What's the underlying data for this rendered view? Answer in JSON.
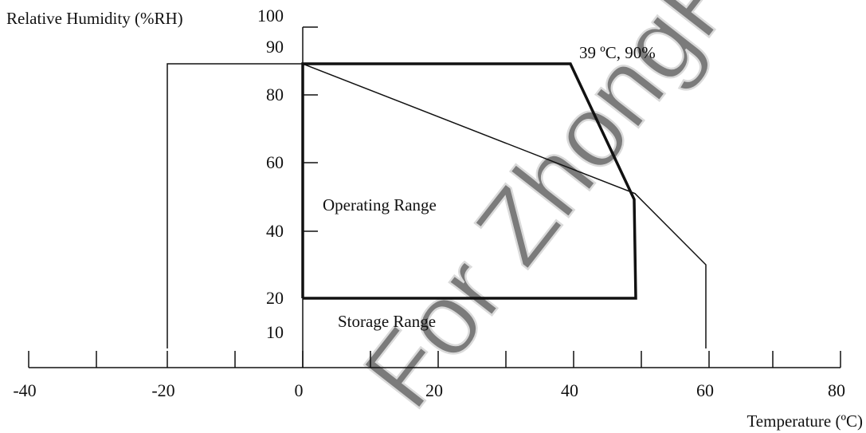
{
  "chart_data": {
    "type": "line",
    "ylabel": "Relative Humidity (%RH)",
    "xlabel": "Temperature (ºC)",
    "x_ticks": [
      -40,
      -20,
      0,
      20,
      40,
      60,
      80
    ],
    "x_minor_ticks": [
      -30,
      -10,
      10,
      30,
      50,
      70
    ],
    "y_ticks": [
      10,
      20,
      40,
      60,
      80,
      90,
      100
    ],
    "series": [
      {
        "name": "Operating Range",
        "points": [
          [
            0,
            20
          ],
          [
            0,
            90
          ],
          [
            39,
            90
          ],
          [
            49,
            51
          ],
          [
            49.5,
            20
          ]
        ]
      },
      {
        "name": "Storage Range",
        "points": [
          [
            -20,
            0
          ],
          [
            -20,
            90
          ],
          [
            0,
            90
          ],
          [
            49,
            51
          ],
          [
            60,
            30
          ],
          [
            60,
            0
          ]
        ]
      }
    ],
    "annotations": [
      {
        "text": "39 ºC, 90%",
        "x": 40,
        "y": 90
      }
    ],
    "colors": {
      "line": "#111111",
      "watermark": "#c8c8c8"
    }
  },
  "watermark": {
    "text": "For ZhongFeng Use Only"
  }
}
